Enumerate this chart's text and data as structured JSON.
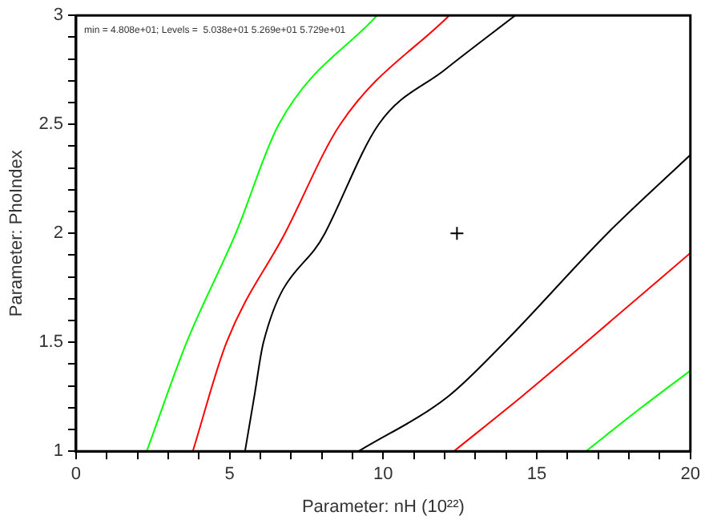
{
  "chart_data": {
    "type": "line",
    "xlabel": "Parameter: nH (10²²)",
    "ylabel": "Parameter: PhoIndex",
    "annotations": [
      "min = 4.808e+01; Levels =  5.038e+01 5.269e+01 5.729e+01"
    ],
    "xlim": [
      0,
      20
    ],
    "ylim": [
      1,
      3
    ],
    "xticks": [
      0,
      {
        "value": 1,
        "label": null
      },
      {
        "value": 2,
        "label": null
      },
      {
        "value": 3,
        "label": null
      },
      {
        "value": 4,
        "label": null
      },
      5,
      {
        "value": 6,
        "label": null
      },
      {
        "value": 7,
        "label": null
      },
      {
        "value": 8,
        "label": null
      },
      {
        "value": 9,
        "label": null
      },
      10,
      {
        "value": 11,
        "label": null
      },
      {
        "value": 12,
        "label": null
      },
      {
        "value": 13,
        "label": null
      },
      {
        "value": 14,
        "label": null
      },
      15,
      {
        "value": 16,
        "label": null
      },
      {
        "value": 17,
        "label": null
      },
      {
        "value": 18,
        "label": null
      },
      {
        "value": 19,
        "label": null
      },
      20
    ],
    "yticks": [
      1,
      {
        "value": 1.1,
        "label": null
      },
      {
        "value": 1.2,
        "label": null
      },
      {
        "value": 1.3,
        "label": null
      },
      {
        "value": 1.4,
        "label": null
      },
      1.5,
      {
        "value": 1.6,
        "label": null
      },
      {
        "value": 1.7,
        "label": null
      },
      {
        "value": 1.8,
        "label": null
      },
      {
        "value": 1.9,
        "label": null
      },
      2,
      {
        "value": 2.1,
        "label": null
      },
      {
        "value": 2.2,
        "label": null
      },
      {
        "value": 2.3,
        "label": null
      },
      {
        "value": 2.4,
        "label": null
      },
      2.5,
      {
        "value": 2.6,
        "label": null
      },
      {
        "value": 2.7,
        "label": null
      },
      {
        "value": 2.8,
        "label": null
      },
      {
        "value": 2.9,
        "label": null
      },
      3
    ],
    "grid": false,
    "legend": false,
    "marker": "none",
    "line_style": "solid",
    "series": [
      {
        "color": "#00ff00",
        "x": [
          2.3,
          3.6,
          5.2,
          6.6,
          9.8
        ],
        "values": [
          1,
          1.5,
          2,
          2.5,
          3
        ]
      },
      {
        "color": "#ff0000",
        "x": [
          3.8,
          4.9,
          6.8,
          8.6,
          12.15
        ],
        "values": [
          1,
          1.5,
          2,
          2.5,
          3
        ]
      },
      {
        "color": "#000000",
        "x": [
          5.5,
          5.8,
          6.1,
          8.1,
          9.85,
          12.0,
          14.3
        ],
        "values": [
          1,
          1.25,
          1.5,
          2,
          2.5,
          2.75,
          3
        ]
      },
      {
        "color": "#000000",
        "x": [
          9.2,
          12.1,
          13.95,
          17.3,
          20
        ],
        "values": [
          1,
          1.25,
          1.5,
          2,
          2.36
        ]
      },
      {
        "color": "#ff0000",
        "x": [
          12.3,
          14.5,
          16.6,
          20
        ],
        "values": [
          1,
          1.25,
          1.5,
          1.91
        ]
      },
      {
        "color": "#00ff00",
        "x": [
          16.6,
          18.4,
          20
        ],
        "values": [
          1,
          1.2,
          1.37
        ]
      },
      {
        "type": "scatter",
        "color": "#000000",
        "marker": "cross",
        "x": [
          12.4
        ],
        "values": [
          2
        ]
      }
    ]
  }
}
